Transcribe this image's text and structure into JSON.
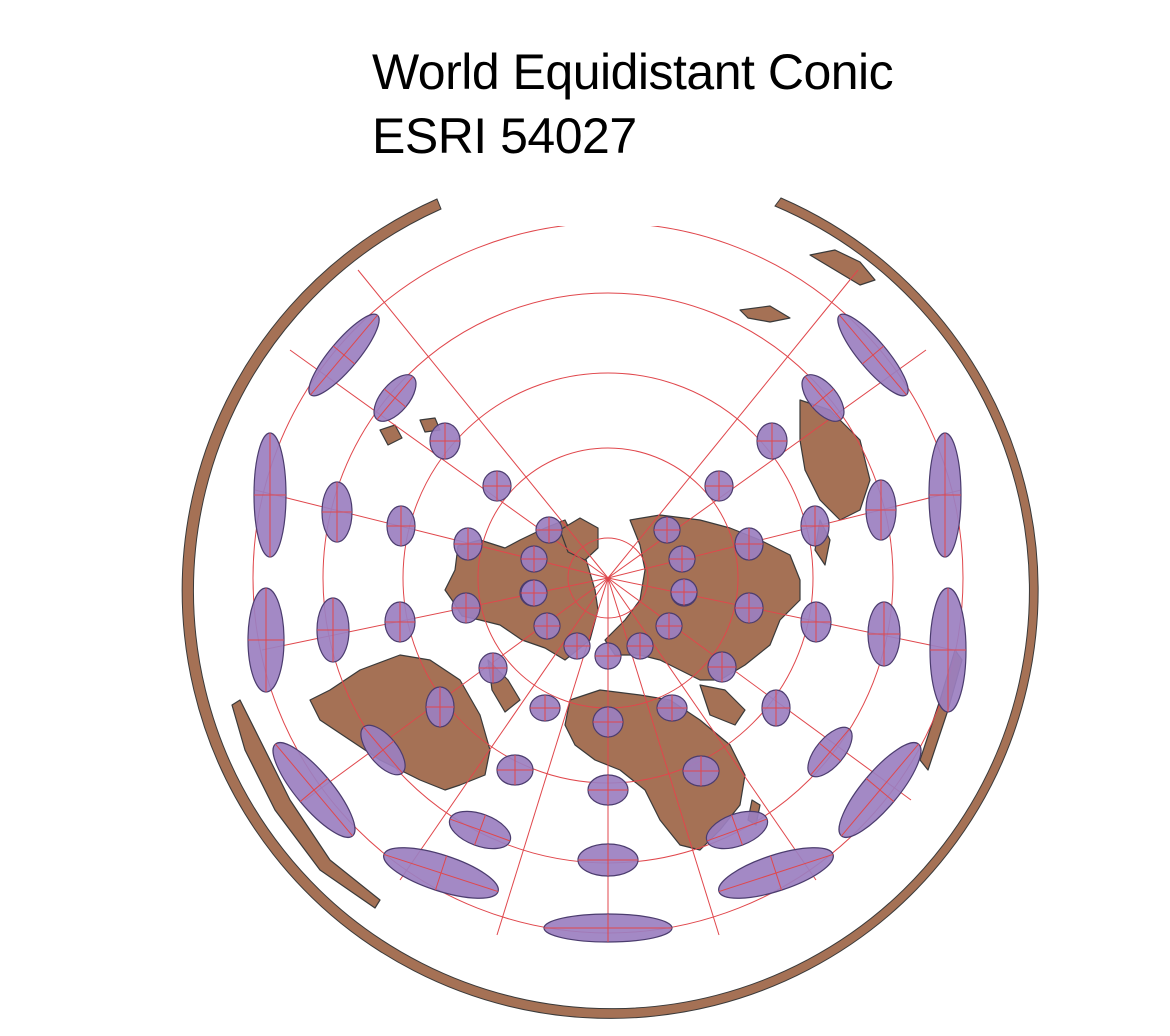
{
  "title": "World Equidistant Conic",
  "subtitle": "ESRI 54027",
  "colors": {
    "land": "#a57155",
    "land_stroke": "#3a3a3a",
    "tissot_fill": "#9b7fc0",
    "tissot_stroke": "#4b3c6e",
    "graticule": "#e0474c",
    "background": "#ffffff"
  },
  "map": {
    "projection": "Equidistant Conic",
    "features": [
      "land-masses",
      "antarctica-ring",
      "graticule",
      "tissot-indicatrix"
    ]
  }
}
